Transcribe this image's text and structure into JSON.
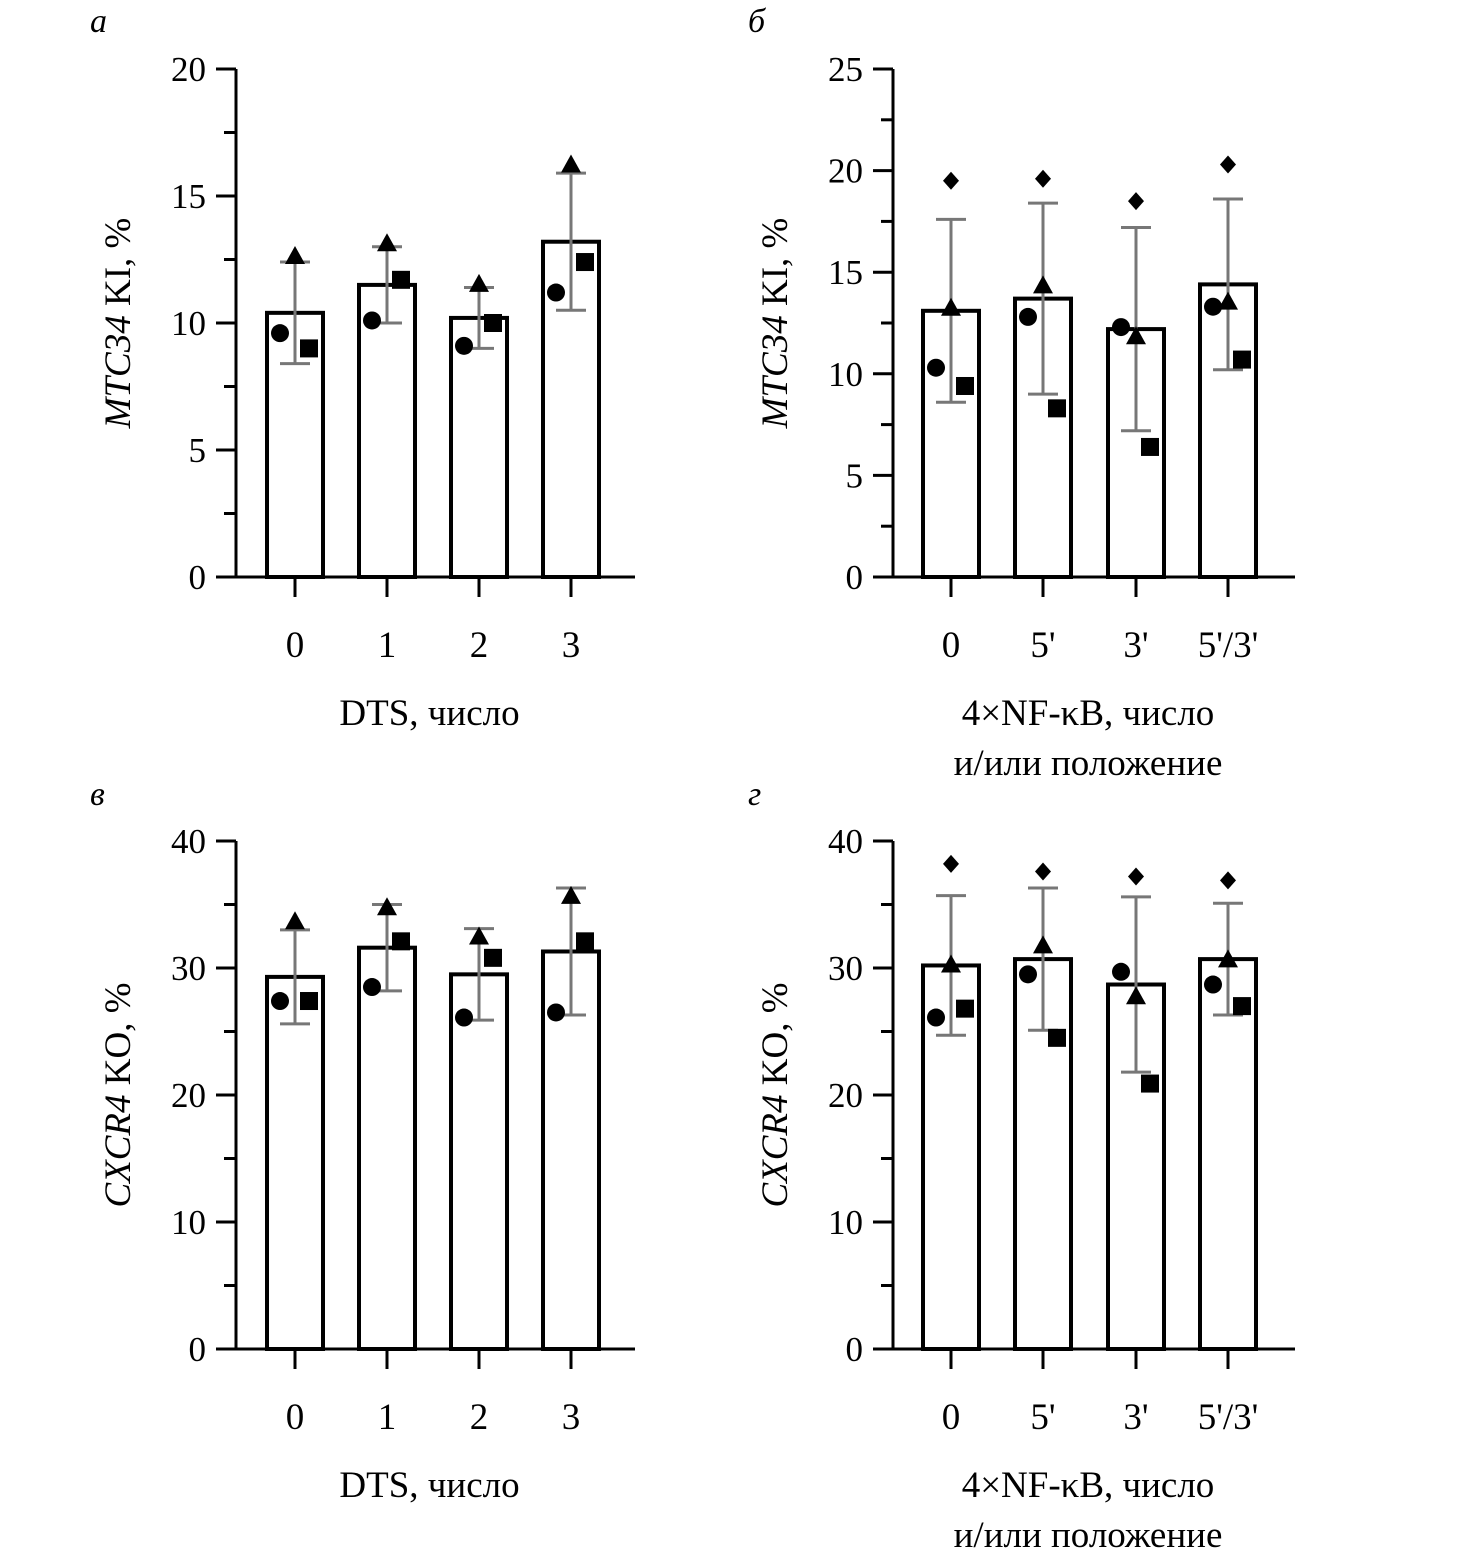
{
  "chart_data": [
    {
      "panel": "а",
      "type": "bar",
      "ylabel_gene": "MTC34",
      "ylabel_rest": " KI, %",
      "xlabel": [
        "DTS, число"
      ],
      "ylim": [
        0,
        20
      ],
      "yticks": [
        0,
        5,
        10,
        15,
        20
      ],
      "categories": [
        "0",
        "1",
        "2",
        "3"
      ],
      "values": [
        10.4,
        11.5,
        10.2,
        13.2
      ],
      "sd": [
        2.0,
        1.5,
        1.2,
        2.7
      ],
      "points": [
        {
          "triangle": 12.6,
          "circle": 9.6,
          "square": 9.0
        },
        {
          "triangle": 13.1,
          "square": 11.7,
          "circle": 10.1
        },
        {
          "triangle": 11.5,
          "square": 10.0,
          "circle": 9.1
        },
        {
          "triangle": 16.2,
          "square": 12.4,
          "circle": 11.2
        }
      ]
    },
    {
      "panel": "б",
      "type": "bar",
      "ylabel_gene": "MTC34",
      "ylabel_rest": " KI, %",
      "xlabel": [
        "4×NF-κB, число",
        "и/или положение"
      ],
      "ylim": [
        0,
        25
      ],
      "yticks": [
        0,
        5,
        10,
        15,
        20,
        25
      ],
      "categories": [
        "0",
        "5'",
        "3'",
        "5'/3'"
      ],
      "values": [
        13.1,
        13.7,
        12.2,
        14.4
      ],
      "sd": [
        4.5,
        4.7,
        5.0,
        4.2
      ],
      "points": [
        {
          "diamond": 19.5,
          "triangle": 13.2,
          "circle": 10.3,
          "square": 9.4
        },
        {
          "diamond": 19.6,
          "triangle": 14.3,
          "circle": 12.8,
          "square": 8.3
        },
        {
          "diamond": 18.5,
          "circle": 12.3,
          "triangle": 11.8,
          "square": 6.4
        },
        {
          "diamond": 20.3,
          "triangle": 13.5,
          "circle": 13.3,
          "square": 10.7
        }
      ]
    },
    {
      "panel": "в",
      "type": "bar",
      "ylabel_gene": "CXCR4",
      "ylabel_rest": " KO, %",
      "xlabel": [
        "DTS, число"
      ],
      "ylim": [
        0,
        40
      ],
      "yticks": [
        0,
        10,
        20,
        30,
        40
      ],
      "categories": [
        "0",
        "1",
        "2",
        "3"
      ],
      "values": [
        29.3,
        31.6,
        29.5,
        31.3
      ],
      "sd": [
        3.7,
        3.4,
        3.6,
        5.0
      ],
      "points": [
        {
          "triangle": 33.6,
          "square": 27.4,
          "circle": 27.4
        },
        {
          "triangle": 34.7,
          "square": 32.1,
          "circle": 28.5
        },
        {
          "triangle": 32.4,
          "square": 30.8,
          "circle": 26.1
        },
        {
          "triangle": 35.6,
          "square": 32.1,
          "circle": 26.5
        }
      ]
    },
    {
      "panel": "г",
      "type": "bar",
      "ylabel_gene": "CXCR4",
      "ylabel_rest": " KO, %",
      "xlabel": [
        "4×NF-κB, число",
        "и/или положение"
      ],
      "ylim": [
        0,
        40
      ],
      "yticks": [
        0,
        10,
        20,
        30,
        40
      ],
      "categories": [
        "0",
        "5'",
        "3'",
        "5'/3'"
      ],
      "values": [
        30.2,
        30.7,
        28.7,
        30.7
      ],
      "sd": [
        5.5,
        5.6,
        6.9,
        4.4
      ],
      "points": [
        {
          "diamond": 38.2,
          "triangle": 30.2,
          "square": 26.8,
          "circle": 26.1
        },
        {
          "diamond": 37.6,
          "triangle": 31.7,
          "circle": 29.5,
          "square": 24.5
        },
        {
          "diamond": 37.2,
          "circle": 29.7,
          "triangle": 27.7,
          "square": 20.9
        },
        {
          "diamond": 36.9,
          "triangle": 30.6,
          "circle": 28.7,
          "square": 27.0
        }
      ]
    }
  ]
}
